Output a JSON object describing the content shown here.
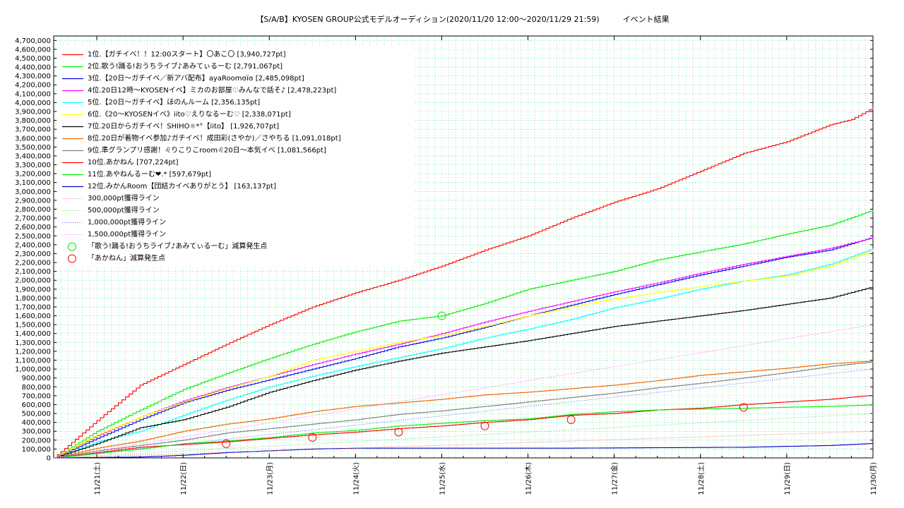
{
  "chart_data": {
    "type": "line",
    "title": "【S/A/B】KYOSEN GROUP公式モデルオーディション(2020/11/20 12:00〜2020/11/29 21:59)　　　イベント結果",
    "xlabel": "",
    "ylabel": "",
    "ylim": [
      0,
      4750000
    ],
    "xlim": [
      0,
      9.5
    ],
    "y_ticks": [
      "0",
      "100,000",
      "200,000",
      "300,000",
      "400,000",
      "500,000",
      "600,000",
      "700,000",
      "800,000",
      "900,000",
      "1,000,000",
      "1,100,000",
      "1,200,000",
      "1,300,000",
      "1,400,000",
      "1,500,000",
      "1,600,000",
      "1,700,000",
      "1,800,000",
      "1,900,000",
      "2,000,000",
      "2,100,000",
      "2,200,000",
      "2,300,000",
      "2,400,000",
      "2,500,000",
      "2,600,000",
      "2,700,000",
      "2,800,000",
      "2,900,000",
      "3,000,000",
      "3,100,000",
      "3,200,000",
      "3,300,000",
      "3,400,000",
      "3,500,000",
      "3,600,000",
      "3,700,000",
      "3,800,000",
      "3,900,000",
      "4,000,000",
      "4,100,000",
      "4,200,000",
      "4,300,000",
      "4,400,000",
      "4,500,000",
      "4,600,000",
      "4,700,000"
    ],
    "x_ticks": [
      "11/21(土)",
      "11/22(日)",
      "11/23(月)",
      "11/24(火)",
      "11/25(水)",
      "11/26(木)",
      "11/27(金)",
      "11/28(土)",
      "11/29(日)",
      "11/30(月)"
    ],
    "grid": true,
    "legend_position": "top-left",
    "series": [
      {
        "name": "1位.【ガチイベ！！12:00スタート】〇あこ〇 [3,940,727pt]",
        "color": "#ff0000",
        "style": "solid",
        "points": [
          [
            0,
            0
          ],
          [
            0.5,
            420000
          ],
          [
            1,
            820000
          ],
          [
            1.5,
            1050000
          ],
          [
            2,
            1280000
          ],
          [
            2.5,
            1500000
          ],
          [
            3,
            1700000
          ],
          [
            3.5,
            1860000
          ],
          [
            4,
            2000000
          ],
          [
            4.5,
            2160000
          ],
          [
            5,
            2340000
          ],
          [
            5.5,
            2500000
          ],
          [
            6,
            2700000
          ],
          [
            6.5,
            2880000
          ],
          [
            7,
            3030000
          ],
          [
            7.5,
            3230000
          ],
          [
            8,
            3430000
          ],
          [
            8.5,
            3560000
          ],
          [
            9,
            3750000
          ],
          [
            9.25,
            3810000
          ],
          [
            9.5,
            3940727
          ]
        ]
      },
      {
        "name": "2位.歌う!踊る!おうちライブ♪あみてぃるーむ [2,791,067pt]",
        "color": "#00ee00",
        "style": "solid",
        "points": [
          [
            0,
            0
          ],
          [
            0.5,
            300000
          ],
          [
            1,
            540000
          ],
          [
            1.5,
            770000
          ],
          [
            2,
            950000
          ],
          [
            2.5,
            1120000
          ],
          [
            3,
            1280000
          ],
          [
            3.5,
            1420000
          ],
          [
            4,
            1540000
          ],
          [
            4.5,
            1600000
          ],
          [
            5,
            1740000
          ],
          [
            5.5,
            1900000
          ],
          [
            6,
            2000000
          ],
          [
            6.5,
            2100000
          ],
          [
            7,
            2230000
          ],
          [
            7.5,
            2320000
          ],
          [
            8,
            2410000
          ],
          [
            8.5,
            2520000
          ],
          [
            9,
            2620000
          ],
          [
            9.5,
            2791067
          ]
        ]
      },
      {
        "name": "3位.【20日〜ガチイベ／新アバ配布】ayaRoomɞïɞ [2,485,098pt]",
        "color": "#0000ee",
        "style": "solid",
        "points": [
          [
            0,
            0
          ],
          [
            0.5,
            220000
          ],
          [
            1,
            430000
          ],
          [
            1.5,
            620000
          ],
          [
            2,
            760000
          ],
          [
            2.5,
            880000
          ],
          [
            3,
            1000000
          ],
          [
            3.5,
            1120000
          ],
          [
            4,
            1250000
          ],
          [
            4.5,
            1350000
          ],
          [
            5,
            1470000
          ],
          [
            5.5,
            1600000
          ],
          [
            6,
            1720000
          ],
          [
            6.5,
            1840000
          ],
          [
            7,
            1950000
          ],
          [
            7.5,
            2060000
          ],
          [
            8,
            2160000
          ],
          [
            8.5,
            2260000
          ],
          [
            9,
            2340000
          ],
          [
            9.5,
            2485098
          ]
        ]
      },
      {
        "name": "4位.20日12時〜KYOSENイベ】ミカのお部屋♡みんなで話そ♪ [2,478,223pt]",
        "color": "#ff00ff",
        "style": "solid",
        "points": [
          [
            0,
            0
          ],
          [
            0.5,
            250000
          ],
          [
            1,
            460000
          ],
          [
            1.5,
            640000
          ],
          [
            2,
            790000
          ],
          [
            2.5,
            920000
          ],
          [
            3,
            1050000
          ],
          [
            3.5,
            1170000
          ],
          [
            4,
            1280000
          ],
          [
            4.5,
            1400000
          ],
          [
            5,
            1530000
          ],
          [
            5.5,
            1650000
          ],
          [
            6,
            1760000
          ],
          [
            6.5,
            1870000
          ],
          [
            7,
            1970000
          ],
          [
            7.5,
            2080000
          ],
          [
            8,
            2180000
          ],
          [
            8.5,
            2270000
          ],
          [
            9,
            2360000
          ],
          [
            9.5,
            2478223
          ]
        ]
      },
      {
        "name": "5位.【20日〜ガチイベ】ほのんルーム [2,356,135pt]",
        "color": "#00ffff",
        "style": "solid",
        "points": [
          [
            0,
            0
          ],
          [
            0.5,
            180000
          ],
          [
            1,
            300000
          ],
          [
            1.5,
            480000
          ],
          [
            2,
            650000
          ],
          [
            2.5,
            800000
          ],
          [
            3,
            920000
          ],
          [
            3.5,
            1030000
          ],
          [
            4,
            1130000
          ],
          [
            4.5,
            1230000
          ],
          [
            5,
            1350000
          ],
          [
            5.5,
            1450000
          ],
          [
            6,
            1560000
          ],
          [
            6.5,
            1690000
          ],
          [
            7,
            1790000
          ],
          [
            7.5,
            1900000
          ],
          [
            8,
            1990000
          ],
          [
            8.5,
            2060000
          ],
          [
            9,
            2180000
          ],
          [
            9.5,
            2356135
          ]
        ]
      },
      {
        "name": "6位.《20〜KYOSENイベ》iito♡えりなるーむ♡ [2,338,071pt]",
        "color": "#ffff00",
        "style": "solid",
        "points": [
          [
            0,
            0
          ],
          [
            0.5,
            260000
          ],
          [
            1,
            460000
          ],
          [
            1.5,
            630000
          ],
          [
            2,
            780000
          ],
          [
            2.5,
            920000
          ],
          [
            3,
            1100000
          ],
          [
            3.5,
            1200000
          ],
          [
            4,
            1300000
          ],
          [
            4.5,
            1380000
          ],
          [
            5,
            1480000
          ],
          [
            5.5,
            1600000
          ],
          [
            6,
            1700000
          ],
          [
            6.5,
            1790000
          ],
          [
            7,
            1860000
          ],
          [
            7.5,
            1930000
          ],
          [
            8,
            1990000
          ],
          [
            8.5,
            2050000
          ],
          [
            9,
            2160000
          ],
          [
            9.5,
            2338071
          ]
        ]
      },
      {
        "name": "7位.20日からガチイベ！SHIHO☼*°【iito】 [1,926,707pt]",
        "color": "#000000",
        "style": "solid",
        "points": [
          [
            0,
            0
          ],
          [
            0.5,
            160000
          ],
          [
            1,
            340000
          ],
          [
            1.5,
            430000
          ],
          [
            2,
            570000
          ],
          [
            2.5,
            740000
          ],
          [
            3,
            870000
          ],
          [
            3.5,
            990000
          ],
          [
            4,
            1090000
          ],
          [
            4.5,
            1180000
          ],
          [
            5,
            1250000
          ],
          [
            5.5,
            1320000
          ],
          [
            6,
            1400000
          ],
          [
            6.5,
            1480000
          ],
          [
            7,
            1540000
          ],
          [
            7.5,
            1600000
          ],
          [
            8,
            1660000
          ],
          [
            8.5,
            1730000
          ],
          [
            9,
            1800000
          ],
          [
            9.5,
            1926707
          ]
        ]
      },
      {
        "name": "8位.20日が着物イベ参加♪ガチイベ！成田彩(さやか)／さやちる [1,091,018pt]",
        "color": "#ee6600",
        "style": "solid",
        "points": [
          [
            0,
            0
          ],
          [
            0.5,
            110000
          ],
          [
            1,
            190000
          ],
          [
            1.5,
            300000
          ],
          [
            2,
            380000
          ],
          [
            2.5,
            440000
          ],
          [
            3,
            520000
          ],
          [
            3.5,
            580000
          ],
          [
            4,
            620000
          ],
          [
            4.5,
            660000
          ],
          [
            5,
            710000
          ],
          [
            5.5,
            740000
          ],
          [
            6,
            780000
          ],
          [
            6.5,
            820000
          ],
          [
            7,
            870000
          ],
          [
            7.5,
            930000
          ],
          [
            8,
            970000
          ],
          [
            8.5,
            1010000
          ],
          [
            9,
            1060000
          ],
          [
            9.5,
            1091018
          ]
        ]
      },
      {
        "name": "9位.準グランプリ感謝！♌りこりこroom♌20日〜本気イベ [1,081,566pt]",
        "color": "#808080",
        "style": "solid",
        "points": [
          [
            0,
            0
          ],
          [
            0.5,
            80000
          ],
          [
            1,
            140000
          ],
          [
            1.5,
            200000
          ],
          [
            2,
            280000
          ],
          [
            2.5,
            330000
          ],
          [
            3,
            380000
          ],
          [
            3.5,
            430000
          ],
          [
            4,
            490000
          ],
          [
            4.5,
            530000
          ],
          [
            5,
            580000
          ],
          [
            5.5,
            630000
          ],
          [
            6,
            680000
          ],
          [
            6.5,
            730000
          ],
          [
            7,
            790000
          ],
          [
            7.5,
            840000
          ],
          [
            8,
            900000
          ],
          [
            8.5,
            960000
          ],
          [
            9,
            1030000
          ],
          [
            9.5,
            1081566
          ]
        ]
      },
      {
        "name": "10位.あかねん [707,224pt]",
        "color": "#ff0000",
        "style": "solid",
        "points": [
          [
            0,
            0
          ],
          [
            0.5,
            60000
          ],
          [
            1,
            120000
          ],
          [
            1.5,
            150000
          ],
          [
            2,
            180000
          ],
          [
            2.5,
            220000
          ],
          [
            3,
            260000
          ],
          [
            3.5,
            290000
          ],
          [
            4,
            330000
          ],
          [
            4.5,
            360000
          ],
          [
            5,
            400000
          ],
          [
            5.5,
            430000
          ],
          [
            6,
            480000
          ],
          [
            6.5,
            500000
          ],
          [
            7,
            540000
          ],
          [
            7.5,
            560000
          ],
          [
            8,
            600000
          ],
          [
            8.5,
            630000
          ],
          [
            9,
            660000
          ],
          [
            9.5,
            707224
          ]
        ]
      },
      {
        "name": "11位.あやねんるーむ❤.* [597,679pt]",
        "color": "#00ee00",
        "style": "solid",
        "points": [
          [
            0,
            0
          ],
          [
            0.5,
            50000
          ],
          [
            1,
            100000
          ],
          [
            1.5,
            160000
          ],
          [
            2,
            190000
          ],
          [
            2.5,
            230000
          ],
          [
            3,
            280000
          ],
          [
            3.5,
            310000
          ],
          [
            4,
            360000
          ],
          [
            4.5,
            390000
          ],
          [
            5,
            420000
          ],
          [
            5.5,
            440000
          ],
          [
            6,
            490000
          ],
          [
            6.5,
            520000
          ],
          [
            7,
            540000
          ],
          [
            7.5,
            550000
          ],
          [
            8,
            560000
          ],
          [
            8.5,
            570000
          ],
          [
            9,
            580000
          ],
          [
            9.5,
            597679
          ]
        ]
      },
      {
        "name": "12位.みかんRoom【団結カイベありがとう】 [163,137pt]",
        "color": "#0000cc",
        "style": "solid",
        "points": [
          [
            0,
            0
          ],
          [
            1,
            10000
          ],
          [
            1.5,
            30000
          ],
          [
            2,
            60000
          ],
          [
            2.5,
            80000
          ],
          [
            3,
            100000
          ],
          [
            3.5,
            110000
          ],
          [
            4,
            110000
          ],
          [
            5,
            110000
          ],
          [
            6,
            110000
          ],
          [
            7,
            115000
          ],
          [
            8,
            120000
          ],
          [
            8.5,
            130000
          ],
          [
            9,
            140000
          ],
          [
            9.5,
            163137
          ]
        ]
      },
      {
        "name": "300,000pt獲得ライン",
        "color": "#ff6666",
        "style": "dotted",
        "points": [
          [
            0,
            0
          ],
          [
            9.5,
            300000
          ]
        ]
      },
      {
        "name": "500,000pt獲得ライン",
        "color": "#66dd66",
        "style": "dotted",
        "points": [
          [
            0,
            0
          ],
          [
            9.5,
            500000
          ]
        ]
      },
      {
        "name": "1,000,000pt獲得ライン",
        "color": "#6666ff",
        "style": "dotted",
        "points": [
          [
            0,
            0
          ],
          [
            9.5,
            1000000
          ]
        ]
      },
      {
        "name": "1,500,000pt獲得ライン",
        "color": "#ff66ff",
        "style": "dotted",
        "points": [
          [
            0,
            0
          ],
          [
            9.5,
            1500000
          ]
        ]
      }
    ],
    "markers": [
      {
        "name": "「歌う!踊る!おうちライブ♪あみてぃるーむ」減算発生点",
        "color": "#00ee00",
        "points": [
          [
            4.5,
            1600000
          ]
        ]
      },
      {
        "name": "「あかねん」減算発生点",
        "color": "#ff0000",
        "points": [
          [
            2,
            160000
          ],
          [
            3,
            230000
          ],
          [
            4,
            290000
          ],
          [
            5,
            360000
          ],
          [
            6,
            430000
          ],
          [
            8,
            570000
          ]
        ]
      }
    ]
  }
}
